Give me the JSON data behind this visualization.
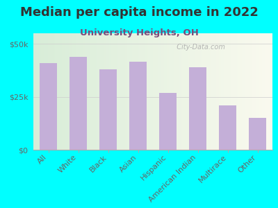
{
  "title": "Median per capita income in 2022",
  "subtitle": "University Heights, OH",
  "categories": [
    "All",
    "White",
    "Black",
    "Asian",
    "Hispanic",
    "American Indian",
    "Multirace",
    "Other"
  ],
  "values": [
    41000,
    44000,
    38000,
    41500,
    27000,
    39000,
    21000,
    15000
  ],
  "bar_color": "#c4afd8",
  "background_outer": "#00ffff",
  "title_color": "#333333",
  "subtitle_color": "#7a4a7a",
  "axis_label_color": "#666666",
  "watermark": "  City-Data.com",
  "ylim": [
    0,
    55000
  ],
  "yticks": [
    0,
    25000,
    50000
  ],
  "ytick_labels": [
    "$0",
    "$25k",
    "$50k"
  ],
  "title_fontsize": 13,
  "subtitle_fontsize": 9.5,
  "tick_fontsize": 8
}
